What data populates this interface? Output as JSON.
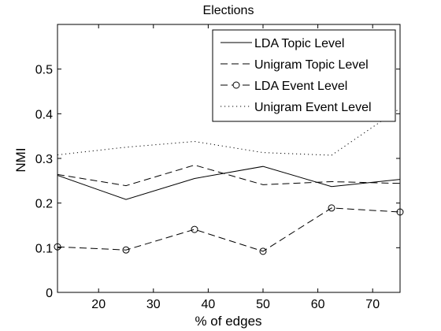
{
  "chart_data": {
    "type": "line",
    "title": "Elections",
    "xlabel": "% of edges",
    "ylabel": "NMI",
    "xlim": [
      12.5,
      75
    ],
    "ylim": [
      0,
      0.6
    ],
    "xticks": [
      20,
      30,
      40,
      50,
      60,
      70
    ],
    "yticks": [
      0,
      0.1,
      0.2,
      0.3,
      0.4,
      0.5
    ],
    "ytick_labels": [
      "0",
      "0.1",
      "0.2",
      "0.3",
      "0.4",
      "0.5"
    ],
    "grid": false,
    "legend_position": "top-right",
    "x": [
      12.5,
      25,
      37.5,
      50,
      62.5,
      75
    ],
    "series": [
      {
        "name": "LDA Topic Level",
        "style": "solid",
        "values": [
          0.262,
          0.208,
          0.255,
          0.282,
          0.237,
          0.253
        ]
      },
      {
        "name": "Unigram Topic Level",
        "style": "dashed",
        "values": [
          0.264,
          0.239,
          0.285,
          0.241,
          0.248,
          0.244
        ]
      },
      {
        "name": "LDA Event Level",
        "style": "dashed-circle",
        "values": [
          0.102,
          0.095,
          0.141,
          0.092,
          0.189,
          0.18
        ]
      },
      {
        "name": "Unigram Event Level",
        "style": "dotted",
        "values": [
          0.308,
          0.325,
          0.338,
          0.313,
          0.307,
          0.412
        ]
      }
    ]
  }
}
